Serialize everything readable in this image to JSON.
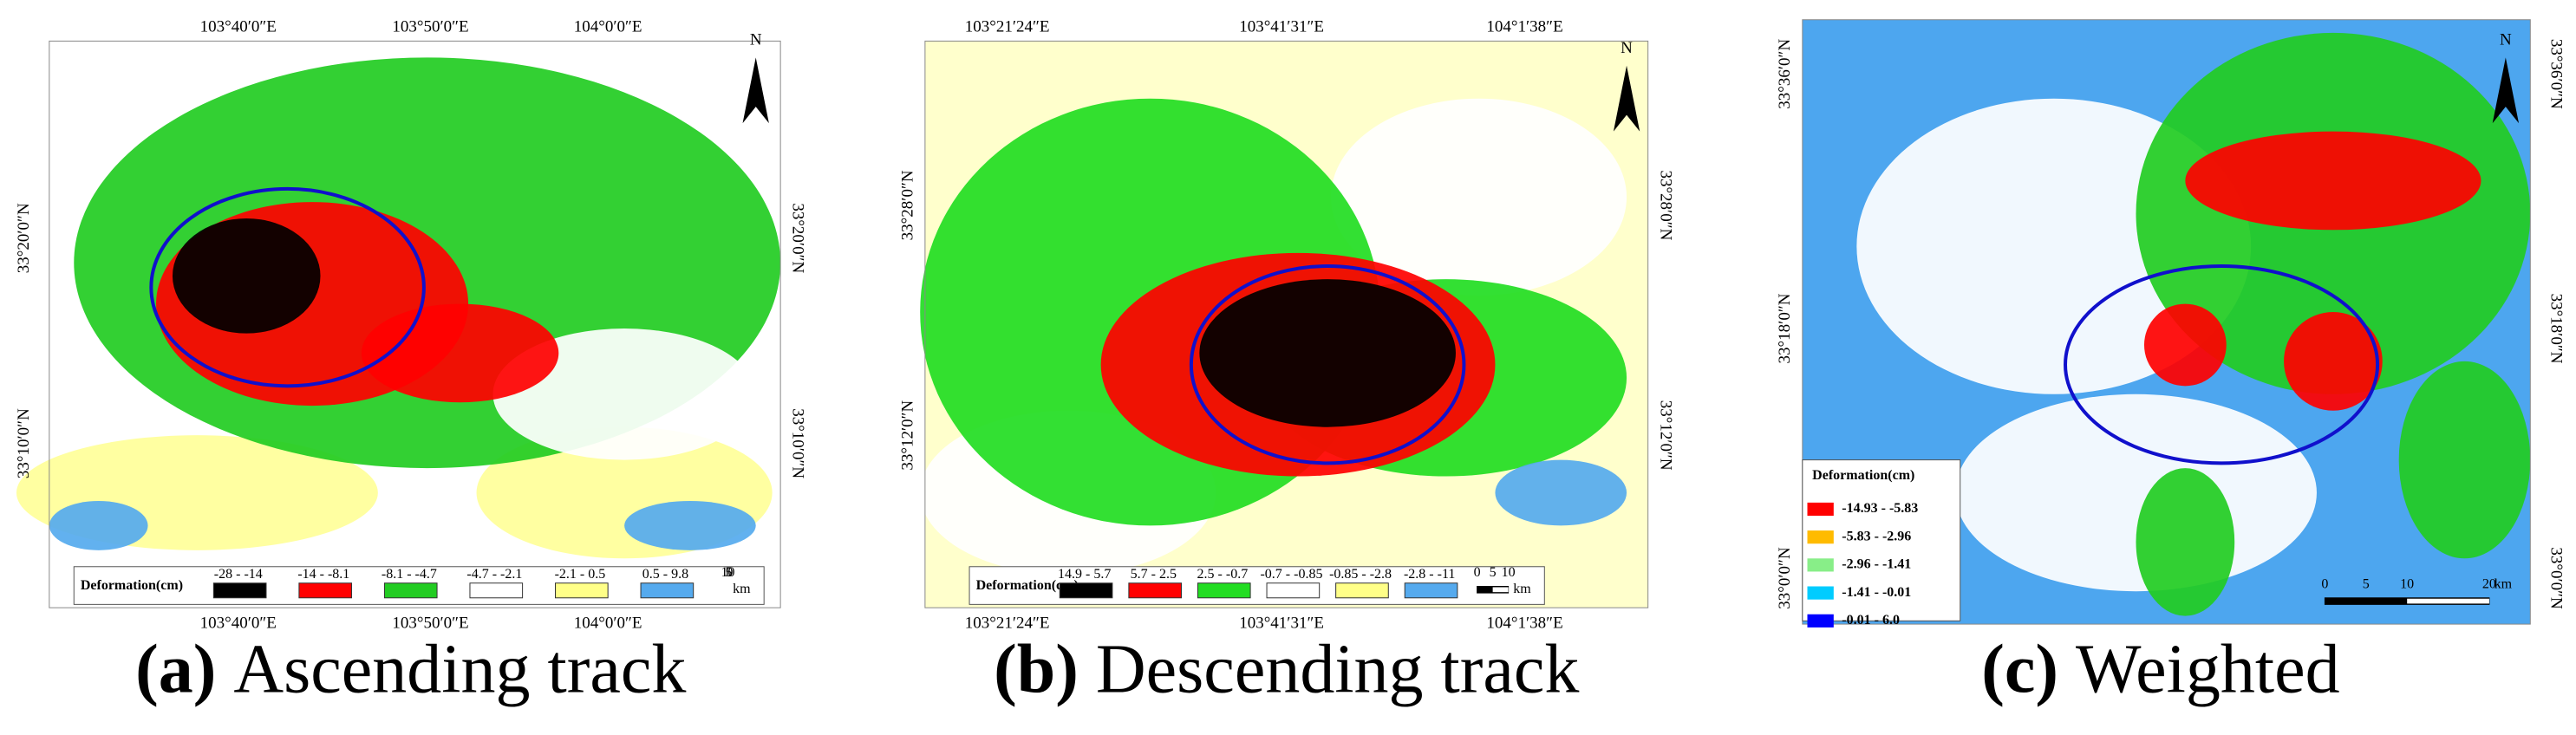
{
  "panels": [
    {
      "caption_letter": "(a)",
      "caption_text": "Ascending track",
      "top_labels": [
        "103°40′0″E",
        "103°50′0″E",
        "104°0′0″E"
      ],
      "bottom_labels": [
        "103°40′0″E",
        "103°50′0″E",
        "104°0′0″E"
      ],
      "left_labels": [
        "33°20′0″N",
        "33°10′0″N"
      ],
      "right_labels": [
        "33°20′0″N",
        "33°10′0″N"
      ],
      "north": "N",
      "legend": {
        "title": "Deformation(cm)",
        "items": [
          {
            "label": "-28 - -14",
            "color": "#000000"
          },
          {
            "label": "-14 - -8.1",
            "color": "#ff0000"
          },
          {
            "label": "-8.1 - -4.7",
            "color": "#22cc22"
          },
          {
            "label": "-4.7 - -2.1",
            "color": "#ffffff"
          },
          {
            "label": "-2.1 - 0.5",
            "color": "#ffff88"
          },
          {
            "label": "0.5 - 9.8",
            "color": "#55aaee"
          }
        ]
      },
      "scale": [
        0,
        5,
        10
      ],
      "scale_unit": "km"
    },
    {
      "caption_letter": "(b)",
      "caption_text": "Descending track",
      "top_labels": [
        "103°21′24″E",
        "103°41′31″E",
        "104°1′38″E"
      ],
      "bottom_labels": [
        "103°21′24″E",
        "103°41′31″E",
        "104°1′38″E"
      ],
      "left_labels": [
        "33°28′0″N",
        "33°12′0″N"
      ],
      "right_labels": [
        "33°28′0″N",
        "33°12′0″N"
      ],
      "north": "N",
      "legend": {
        "title": "Deformation(cm)",
        "items": [
          {
            "label": "14.9 - 5.7",
            "color": "#000000"
          },
          {
            "label": "5.7 - 2.5",
            "color": "#ff0000"
          },
          {
            "label": "2.5 - -0.7",
            "color": "#22dd22"
          },
          {
            "label": "-0.7 - -0.85",
            "color": "#ffffff"
          },
          {
            "label": "-0.85 - -2.8",
            "color": "#ffff88"
          },
          {
            "label": "-2.8 - -11",
            "color": "#55aaee"
          }
        ]
      },
      "scale": [
        0,
        5,
        10
      ],
      "scale_unit": "km"
    },
    {
      "caption_letter": "(c)",
      "caption_text": "Weighted",
      "top_labels": [],
      "bottom_labels": [],
      "left_labels": [
        "33°36′0″N",
        "33°18′0″N",
        "33°0′0″N"
      ],
      "right_labels": [
        "33°36′0″N",
        "33°18′0″N",
        "33°0′0″N"
      ],
      "north": "N",
      "legend": {
        "title": "Deformation(cm)",
        "items": [
          {
            "label": "-14.93 - -5.83",
            "color": "#ff0000"
          },
          {
            "label": "-5.83 - -2.96",
            "color": "#ffbb00"
          },
          {
            "label": "-2.96 - -1.41",
            "color": "#88ee88"
          },
          {
            "label": "-1.41 - -0.01",
            "color": "#00ccff"
          },
          {
            "label": "-0.01 - 6.0",
            "color": "#0000ff"
          }
        ]
      },
      "scale": [
        0,
        5,
        10,
        20
      ],
      "scale_unit": "km"
    }
  ]
}
